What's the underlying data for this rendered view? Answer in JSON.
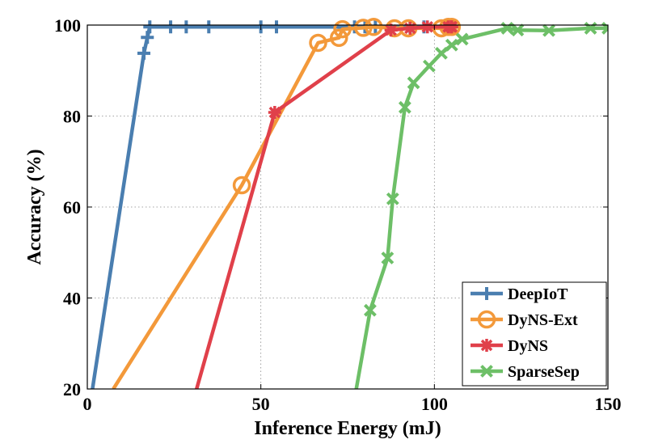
{
  "chart_data": {
    "type": "line",
    "title": "",
    "xlabel": "Inference Energy (mJ)",
    "ylabel": "Accuracy (%)",
    "xlim": [
      0,
      150
    ],
    "ylim": [
      20,
      100
    ],
    "xticks": [
      0,
      50,
      100,
      150
    ],
    "yticks": [
      20,
      40,
      60,
      80,
      100
    ],
    "xtick_labels": [
      "0",
      "50",
      "100",
      "150"
    ],
    "ytick_labels": [
      "20",
      "40",
      "60",
      "80",
      "100"
    ],
    "grid": true,
    "legend_position": "bottom-right",
    "series": [
      {
        "name": "DeepIoT",
        "color": "#4a7eb0",
        "marker": "plus",
        "line_start": [
          1.5,
          20
        ],
        "points": [
          [
            16.3,
            93.8
          ],
          [
            17.3,
            97.3
          ],
          [
            18,
            99.6
          ],
          [
            24,
            99.6
          ],
          [
            28.5,
            99.6
          ],
          [
            35,
            99.6
          ],
          [
            50,
            99.6
          ],
          [
            54.5,
            99.6
          ],
          [
            77,
            99.6
          ],
          [
            80,
            99.6
          ],
          [
            83,
            99.6
          ],
          [
            93,
            99.6
          ],
          [
            97,
            99.6
          ]
        ]
      },
      {
        "name": "DyNS-Ext",
        "color": "#f3993a",
        "marker": "circle",
        "line_start": [
          7.5,
          20
        ],
        "points": [
          [
            44.5,
            64.8
          ],
          [
            66.5,
            96.1
          ],
          [
            72.5,
            97.2
          ],
          [
            73.5,
            99.1
          ],
          [
            79.5,
            99.4
          ],
          [
            82.5,
            99.6
          ],
          [
            88.5,
            99.3
          ],
          [
            92.5,
            99.3
          ],
          [
            102,
            99.3
          ],
          [
            104,
            99.6
          ],
          [
            105,
            99.6
          ]
        ]
      },
      {
        "name": "DyNS",
        "color": "#e0404a",
        "marker": "asterisk",
        "line_start": [
          31.5,
          20
        ],
        "points": [
          [
            54,
            80.8
          ],
          [
            87.5,
            98.9
          ],
          [
            93,
            99.3
          ],
          [
            98,
            99.6
          ],
          [
            104,
            99.6
          ],
          [
            104.8,
            99.6
          ],
          [
            105,
            99.6
          ]
        ]
      },
      {
        "name": "SparseSep",
        "color": "#6dbf67",
        "marker": "x",
        "line_start": [
          77.5,
          20
        ],
        "points": [
          [
            81.5,
            37.3
          ],
          [
            86.5,
            48.8
          ],
          [
            88,
            61.8
          ],
          [
            91.5,
            81.9
          ],
          [
            94,
            87.3
          ],
          [
            98.5,
            91
          ],
          [
            102,
            93.8
          ],
          [
            105,
            95.6
          ],
          [
            108,
            96.9
          ],
          [
            121,
            99.3
          ],
          [
            124,
            98.9
          ],
          [
            133,
            98.8
          ],
          [
            145,
            99.3
          ],
          [
            150,
            99.3
          ]
        ]
      }
    ]
  }
}
